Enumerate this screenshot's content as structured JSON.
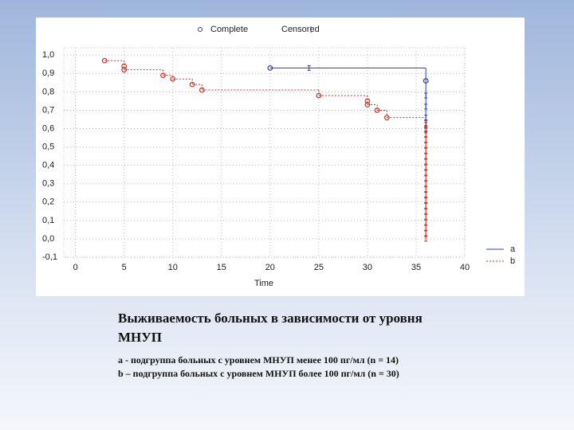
{
  "chart_data": {
    "type": "survival",
    "legend_top": [
      "Complete",
      "Censored"
    ],
    "xlabel": "Time",
    "xlim": [
      -1.2,
      40
    ],
    "xticks": [
      0,
      5,
      10,
      15,
      20,
      25,
      30,
      35,
      40
    ],
    "ylim": [
      -0.1,
      1.04
    ],
    "yticks": [
      {
        "value": -0.1,
        "label": "-0,1"
      },
      {
        "value": 0,
        "label": "0,0"
      },
      {
        "value": 0.1,
        "label": "0,1"
      },
      {
        "value": 0.2,
        "label": "0,2"
      },
      {
        "value": 0.3,
        "label": "0,3"
      },
      {
        "value": 0.4,
        "label": "0,4"
      },
      {
        "value": 0.5,
        "label": "0,5"
      },
      {
        "value": 0.6,
        "label": "0,6"
      },
      {
        "value": 0.7,
        "label": "0,7"
      },
      {
        "value": 0.8,
        "label": "0,8"
      },
      {
        "value": 0.9,
        "label": "0,9"
      },
      {
        "value": 1,
        "label": "1,0"
      }
    ],
    "grid": true,
    "series": [
      {
        "name": "a",
        "color": "#2b3fb0",
        "dashed": false,
        "x": [
          20,
          24,
          36,
          36,
          36,
          36,
          36,
          36
        ],
        "values": [
          0.93,
          0.93,
          0.86,
          0.78,
          0.72,
          0.66,
          0.62,
          0.59
        ],
        "censored": [
          false,
          true,
          false,
          true,
          true,
          true,
          true,
          true
        ]
      },
      {
        "name": "b",
        "color": "#c0392b",
        "dashed": true,
        "x": [
          3,
          5,
          5,
          9,
          10,
          12,
          13,
          25,
          30,
          30,
          31,
          32,
          36,
          36,
          36,
          36,
          36,
          36,
          36,
          36,
          36,
          36,
          36,
          36,
          36,
          36,
          36,
          36,
          36,
          36,
          36,
          36,
          36,
          36
        ],
        "values": [
          0.97,
          0.94,
          0.92,
          0.89,
          0.87,
          0.84,
          0.81,
          0.78,
          0.75,
          0.73,
          0.7,
          0.66,
          0.63,
          0.6,
          0.57,
          0.54,
          0.51,
          0.48,
          0.45,
          0.42,
          0.39,
          0.36,
          0.33,
          0.3,
          0.27,
          0.24,
          0.21,
          0.18,
          0.15,
          0.12,
          0.09,
          0.06,
          0.03,
          0
        ],
        "censored": [
          false,
          false,
          false,
          false,
          false,
          false,
          false,
          false,
          false,
          false,
          false,
          false,
          true,
          true,
          true,
          true,
          true,
          true,
          true,
          true,
          true,
          true,
          true,
          true,
          true,
          true,
          true,
          true,
          true,
          true,
          true,
          true,
          true,
          true
        ]
      }
    ]
  },
  "caption": {
    "title": "Выживаемость больных в зависимости от уровня МНУП",
    "notes": [
      "a - подгруппа больных с уровнем МНУП менее 100 пг/мл (n = 14)",
      "b – подгруппа больных с уровнем МНУП более 100 пг/мл (n = 30)"
    ]
  }
}
